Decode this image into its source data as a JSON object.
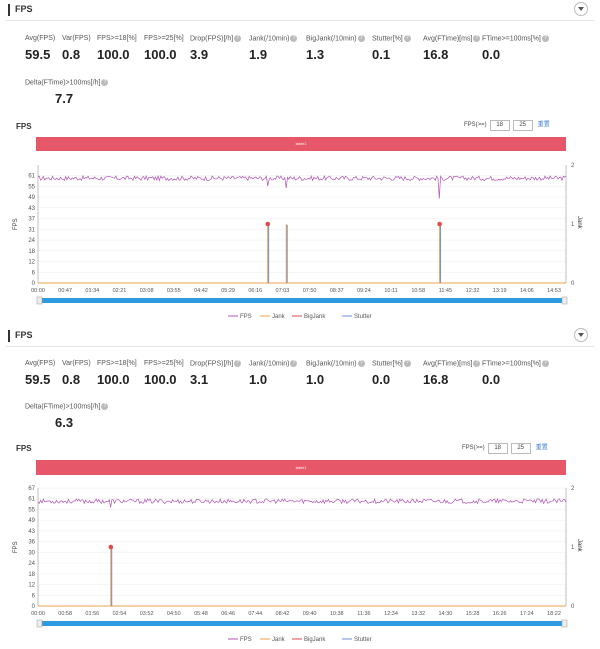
{
  "panels": [
    {
      "header": {
        "title": "FPS"
      },
      "stats": [
        {
          "label": "Avg(FPS)",
          "value": "59.5"
        },
        {
          "label": "Var(FPS)",
          "value": "0.8"
        },
        {
          "label": "FPS>=18[%]",
          "value": "100.0"
        },
        {
          "label": "FPS>=25[%]",
          "value": "100.0"
        },
        {
          "label": "Drop(FPS)[/h]",
          "value": "3.9"
        },
        {
          "label": "Jank(/10min)",
          "value": "1.9"
        },
        {
          "label": "BigJank(/10min)",
          "value": "1.3"
        },
        {
          "label": "Stutter[%]",
          "value": "0.1"
        },
        {
          "label": "Avg(FTime)[ms]",
          "value": "16.8"
        },
        {
          "label": "FTime>=100ms[%]",
          "value": "0.0"
        }
      ],
      "delta": {
        "label": "Delta(FTime)>100ms[/h]",
        "value": "7.7"
      },
      "chart_title": "FPS",
      "fps_control": {
        "label": "FPS(>=)",
        "low": "18",
        "high": "25",
        "reset": "重置"
      },
      "label_bar": "label1",
      "y_axis_title": "FPS",
      "y2_axis_title": "Jank",
      "legend": [
        "FPS",
        "Jank",
        "BigJank",
        "Stutter"
      ]
    },
    {
      "header": {
        "title": "FPS"
      },
      "stats": [
        {
          "label": "Avg(FPS)",
          "value": "59.5"
        },
        {
          "label": "Var(FPS)",
          "value": "0.8"
        },
        {
          "label": "FPS>=18[%]",
          "value": "100.0"
        },
        {
          "label": "FPS>=25[%]",
          "value": "100.0"
        },
        {
          "label": "Drop(FPS)[/h]",
          "value": "3.1"
        },
        {
          "label": "Jank(/10min)",
          "value": "1.0"
        },
        {
          "label": "BigJank(/10min)",
          "value": "1.0"
        },
        {
          "label": "Stutter[%]",
          "value": "0.0"
        },
        {
          "label": "Avg(FTime)[ms]",
          "value": "16.8"
        },
        {
          "label": "FTime>=100ms[%]",
          "value": "0.0"
        }
      ],
      "delta": {
        "label": "Delta(FTime)>100ms[/h]",
        "value": "6.3"
      },
      "chart_title": "FPS",
      "fps_control": {
        "label": "FPS(>=)",
        "low": "18",
        "high": "25",
        "reset": "重置"
      },
      "label_bar": "label1",
      "y_axis_title": "FPS",
      "y2_axis_title": "Jank",
      "legend": [
        "FPS",
        "Jank",
        "BigJank",
        "Stutter"
      ]
    }
  ],
  "chart_data": [
    {
      "type": "line",
      "y_ticks": [
        "0",
        "6",
        "12",
        "18",
        "24",
        "31",
        "37",
        "43",
        "49",
        "55",
        "61"
      ],
      "y2_ticks": [
        "0",
        "1",
        "2"
      ],
      "x_ticks": [
        "00:00",
        "00:47",
        "01:34",
        "02:21",
        "03:08",
        "03:55",
        "04:42",
        "05:29",
        "06:16",
        "07:03",
        "07:50",
        "08:37",
        "09:24",
        "10:11",
        "10:58",
        "11:45",
        "12:32",
        "13:19",
        "14:06",
        "14:53"
      ],
      "ylim": [
        0,
        67
      ],
      "y2lim": [
        0,
        2
      ],
      "xlim": [
        0,
        940
      ],
      "fps_baseline": 59.5,
      "fps_drops": [
        {
          "x": 409,
          "y": 55
        },
        {
          "x": 442,
          "y": 54
        },
        {
          "x": 715,
          "y": 48
        }
      ],
      "jank": [
        {
          "x": 409,
          "y": 1
        },
        {
          "x": 442,
          "y": 1
        },
        {
          "x": 715,
          "y": 1
        }
      ],
      "bigjank": [
        {
          "x": 409,
          "y": 1
        },
        {
          "x": 715,
          "y": 1
        }
      ],
      "stutter": [
        {
          "x": 409,
          "y": 33
        },
        {
          "x": 442,
          "y": 33
        },
        {
          "x": 715,
          "y": 33
        }
      ],
      "colors": {
        "FPS": "#b054b6",
        "Jank": "#e8a34a",
        "BigJank": "#e34a4a",
        "Stutter": "#6f8fd6"
      },
      "grid": true,
      "legend_position": "bottom"
    },
    {
      "type": "line",
      "y_ticks": [
        "0",
        "6",
        "12",
        "18",
        "24",
        "30",
        "36",
        "43",
        "49",
        "55",
        "61",
        "67"
      ],
      "y2_ticks": [
        "0",
        "1",
        "2"
      ],
      "x_ticks": [
        "00:00",
        "00:58",
        "01:56",
        "02:54",
        "03:52",
        "04:50",
        "05:48",
        "06:46",
        "07:44",
        "08:42",
        "09:40",
        "10:38",
        "11:36",
        "12:34",
        "13:32",
        "14:30",
        "15:28",
        "16:26",
        "17:24",
        "18:22"
      ],
      "ylim": [
        0,
        67
      ],
      "y2lim": [
        0,
        2
      ],
      "xlim": [
        0,
        1160
      ],
      "fps_baseline": 59.5,
      "fps_drops": [
        {
          "x": 160,
          "y": 56
        }
      ],
      "jank": [
        {
          "x": 160,
          "y": 1
        }
      ],
      "bigjank": [
        {
          "x": 160,
          "y": 1
        }
      ],
      "stutter": [
        {
          "x": 160,
          "y": 33
        }
      ],
      "colors": {
        "FPS": "#b054b6",
        "Jank": "#e8a34a",
        "BigJank": "#e34a4a",
        "Stutter": "#6f8fd6"
      },
      "grid": true,
      "legend_position": "bottom"
    }
  ]
}
